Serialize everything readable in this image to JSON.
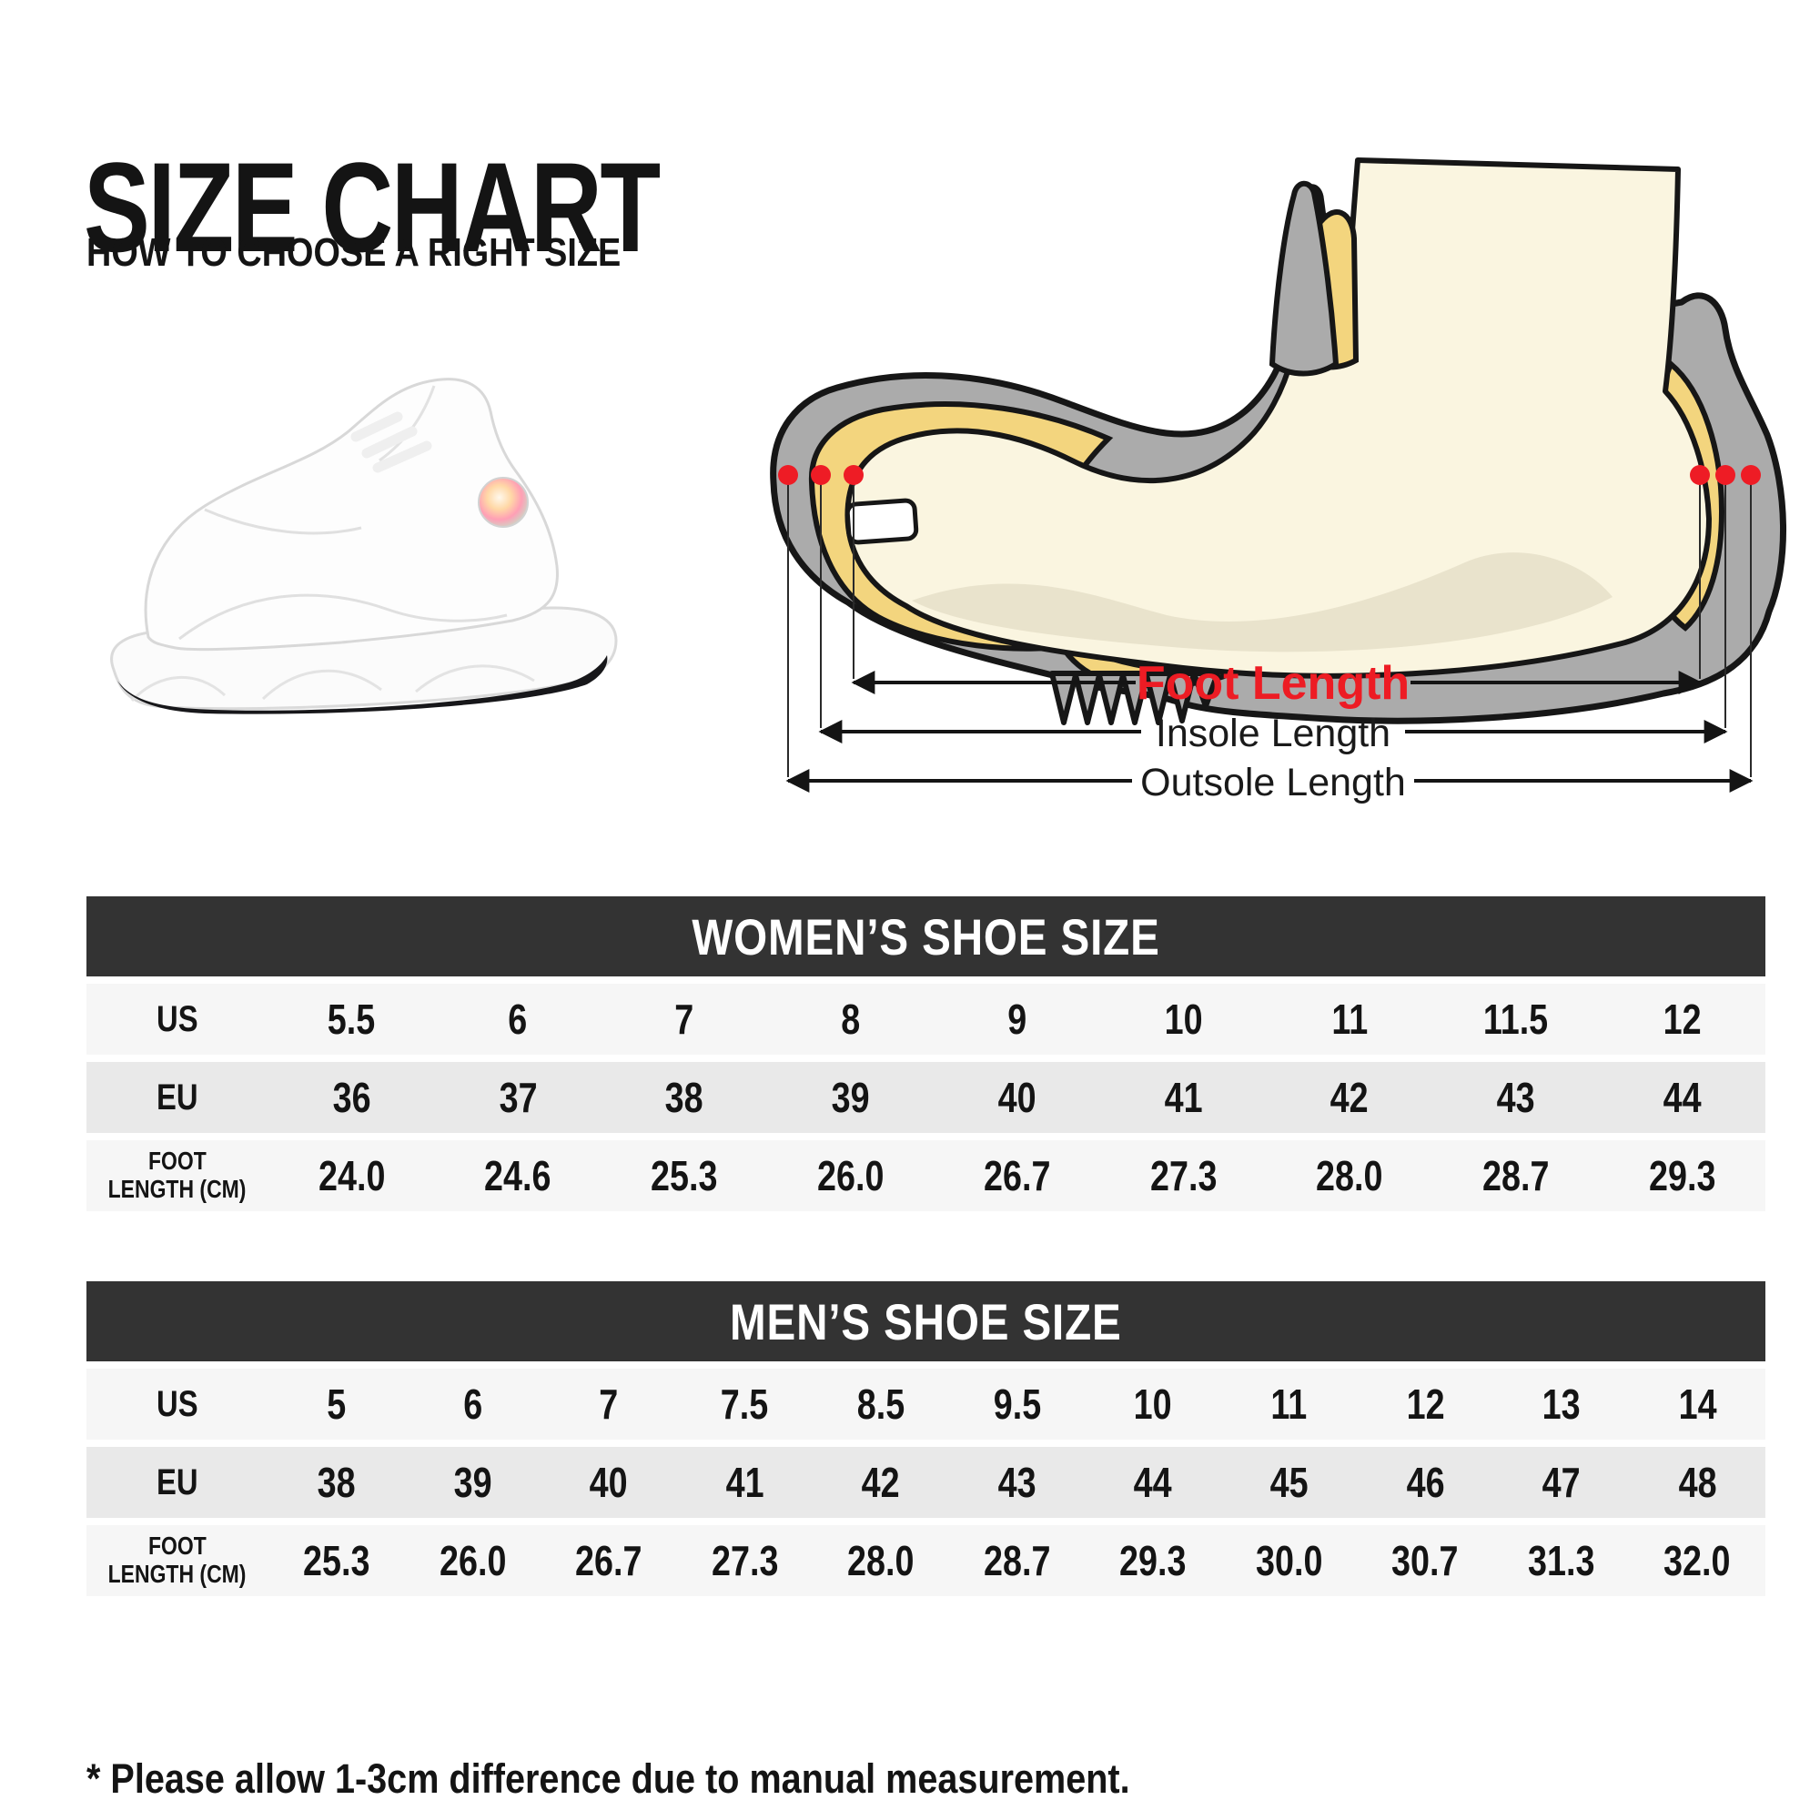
{
  "header": {
    "title": "SIZE CHART",
    "subtitle": "HOW TO CHOOSE A RIGHT SIZE"
  },
  "product_image": {
    "description": "white high-top basketball sneaker, side view with holographic ankle badge"
  },
  "diagram": {
    "foot_length_label": "Foot Length",
    "insole_length_label": "Insole Length",
    "outsole_length_label": "Outsole Length",
    "colors": {
      "shoe_gray": "#ABABAB",
      "lining_yellow": "#F3D57E",
      "skin_cream": "#FAF5E0",
      "skin_shade": "#E9E3CC",
      "outline": "#161616",
      "marker_dot": "#EE1C25",
      "foot_label_red": "#ED1C24"
    }
  },
  "tables": [
    {
      "title": "WOMEN’S SHOE SIZE",
      "rows": [
        {
          "label_lines": [
            "US"
          ],
          "values": [
            "5.5",
            "6",
            "7",
            "8",
            "9",
            "10",
            "11",
            "11.5",
            "12"
          ]
        },
        {
          "label_lines": [
            "EU"
          ],
          "values": [
            "36",
            "37",
            "38",
            "39",
            "40",
            "41",
            "42",
            "43",
            "44"
          ]
        },
        {
          "label_lines": [
            "FOOT",
            "LENGTH (CM)"
          ],
          "values": [
            "24.0",
            "24.6",
            "25.3",
            "26.0",
            "26.7",
            "27.3",
            "28.0",
            "28.7",
            "29.3"
          ]
        }
      ]
    },
    {
      "title": "MEN’S SHOE SIZE",
      "rows": [
        {
          "label_lines": [
            "US"
          ],
          "values": [
            "5",
            "6",
            "7",
            "7.5",
            "8.5",
            "9.5",
            "10",
            "11",
            "12",
            "13",
            "14"
          ]
        },
        {
          "label_lines": [
            "EU"
          ],
          "values": [
            "38",
            "39",
            "40",
            "41",
            "42",
            "43",
            "44",
            "45",
            "46",
            "47",
            "48"
          ]
        },
        {
          "label_lines": [
            "FOOT",
            "LENGTH (CM)"
          ],
          "values": [
            "25.3",
            "26.0",
            "26.7",
            "27.3",
            "28.0",
            "28.7",
            "29.3",
            "30.0",
            "30.7",
            "31.3",
            "32.0"
          ]
        }
      ]
    }
  ],
  "footnote": "* Please allow 1-3cm difference due to manual measurement.",
  "colors": {
    "header_bar": "#333333",
    "row_light": "#F6F6F6",
    "row_dark": "#E9E9E9",
    "text": "#141414"
  }
}
